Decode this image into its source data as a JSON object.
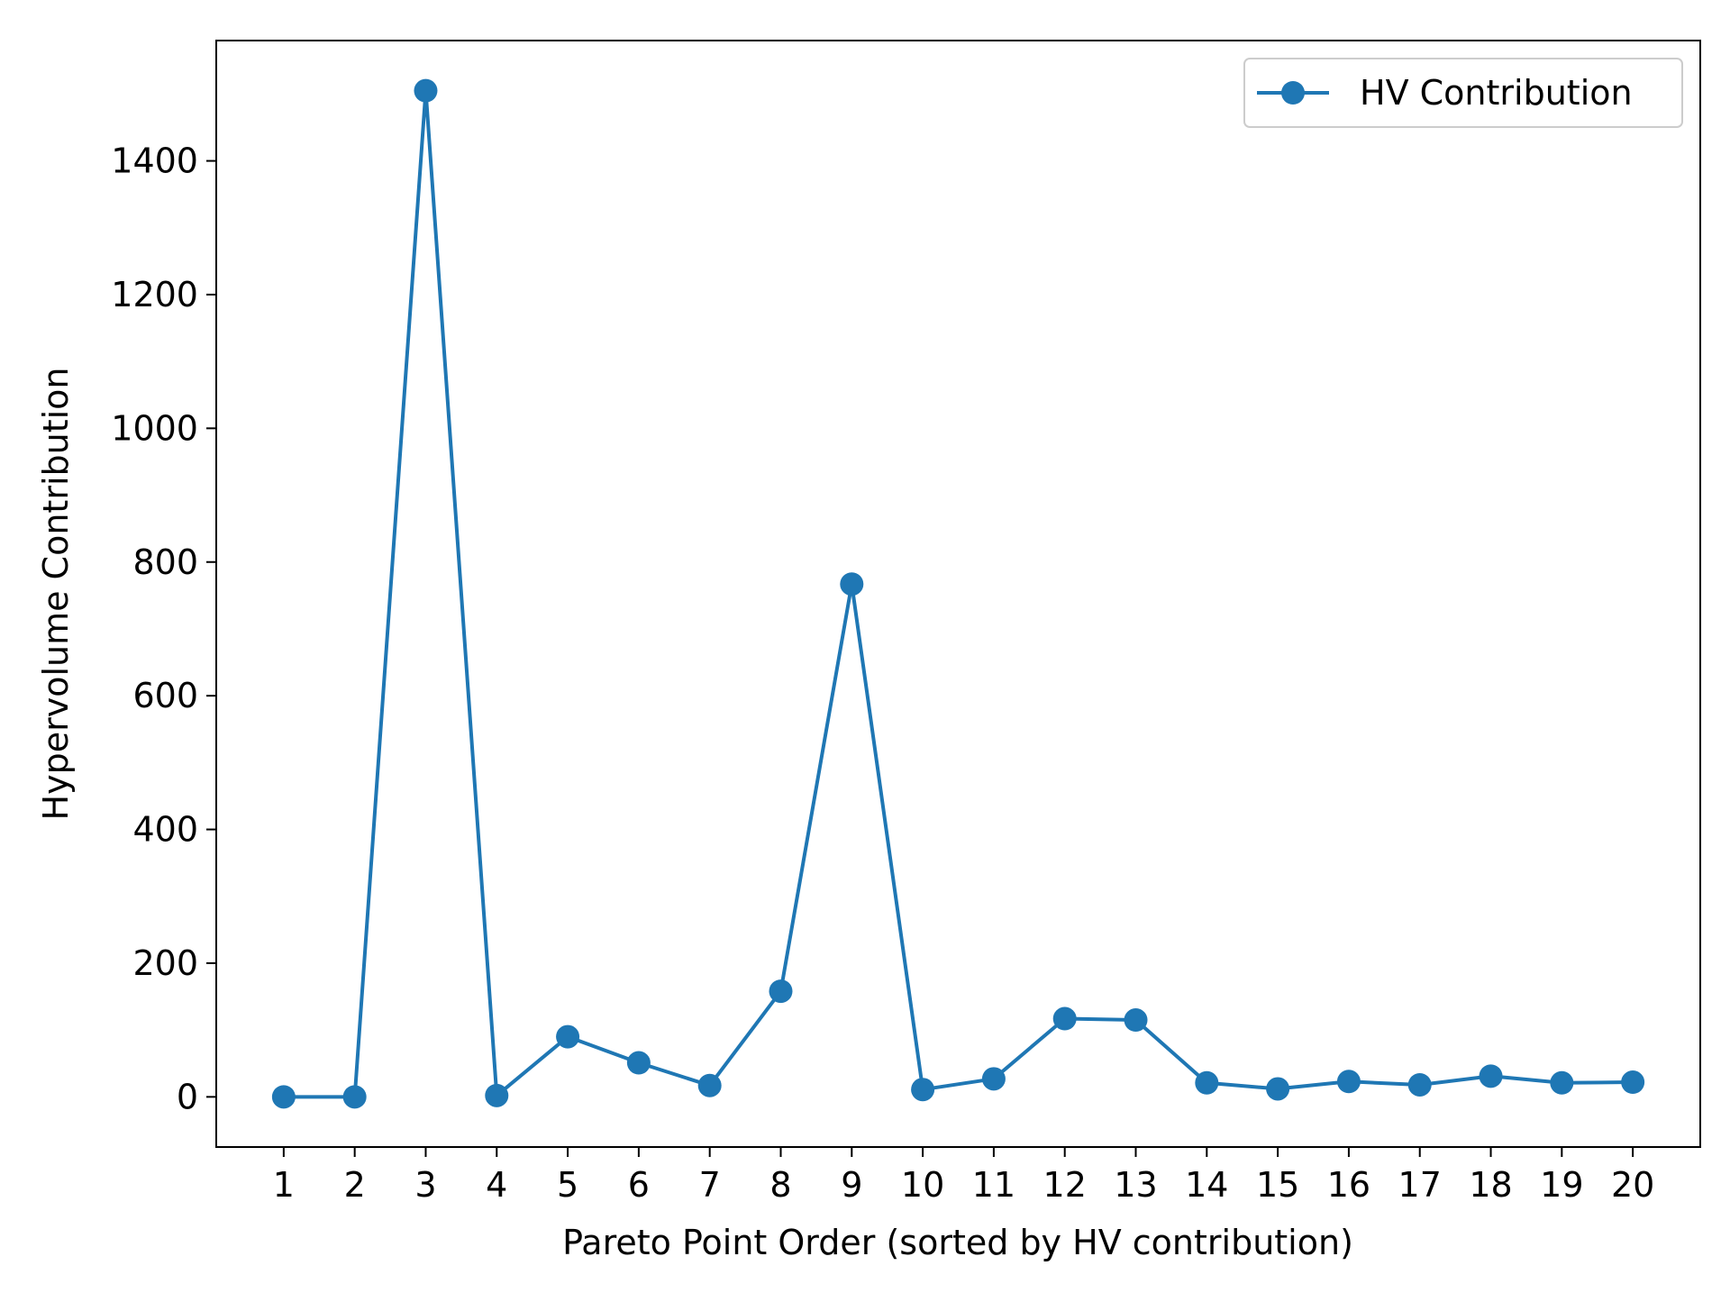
{
  "chart_data": {
    "type": "line",
    "title": "",
    "xlabel": "Pareto Point Order (sorted by HV contribution)",
    "ylabel": "Hypervolume Contribution",
    "xlim": [
      0.05,
      20.95
    ],
    "ylim": [
      -75,
      1580
    ],
    "xticks": [
      1,
      2,
      3,
      4,
      5,
      6,
      7,
      8,
      9,
      10,
      11,
      12,
      13,
      14,
      15,
      16,
      17,
      18,
      19,
      20
    ],
    "yticks": [
      0,
      200,
      400,
      600,
      800,
      1000,
      1200,
      1400
    ],
    "grid": false,
    "legend_position": "top-right",
    "colors": {
      "series": "#1f77b4",
      "axes": "#000000",
      "legend_border": "#cccccc"
    },
    "series": [
      {
        "name": "HV Contribution",
        "marker": "circle",
        "x": [
          1,
          2,
          3,
          4,
          5,
          6,
          7,
          8,
          9,
          10,
          11,
          12,
          13,
          14,
          15,
          16,
          17,
          18,
          19,
          20
        ],
        "values": [
          0,
          0,
          1505,
          2,
          90,
          51,
          17,
          158,
          767,
          11,
          27,
          117,
          115,
          21,
          12,
          23,
          18,
          31,
          21,
          22
        ]
      }
    ]
  }
}
